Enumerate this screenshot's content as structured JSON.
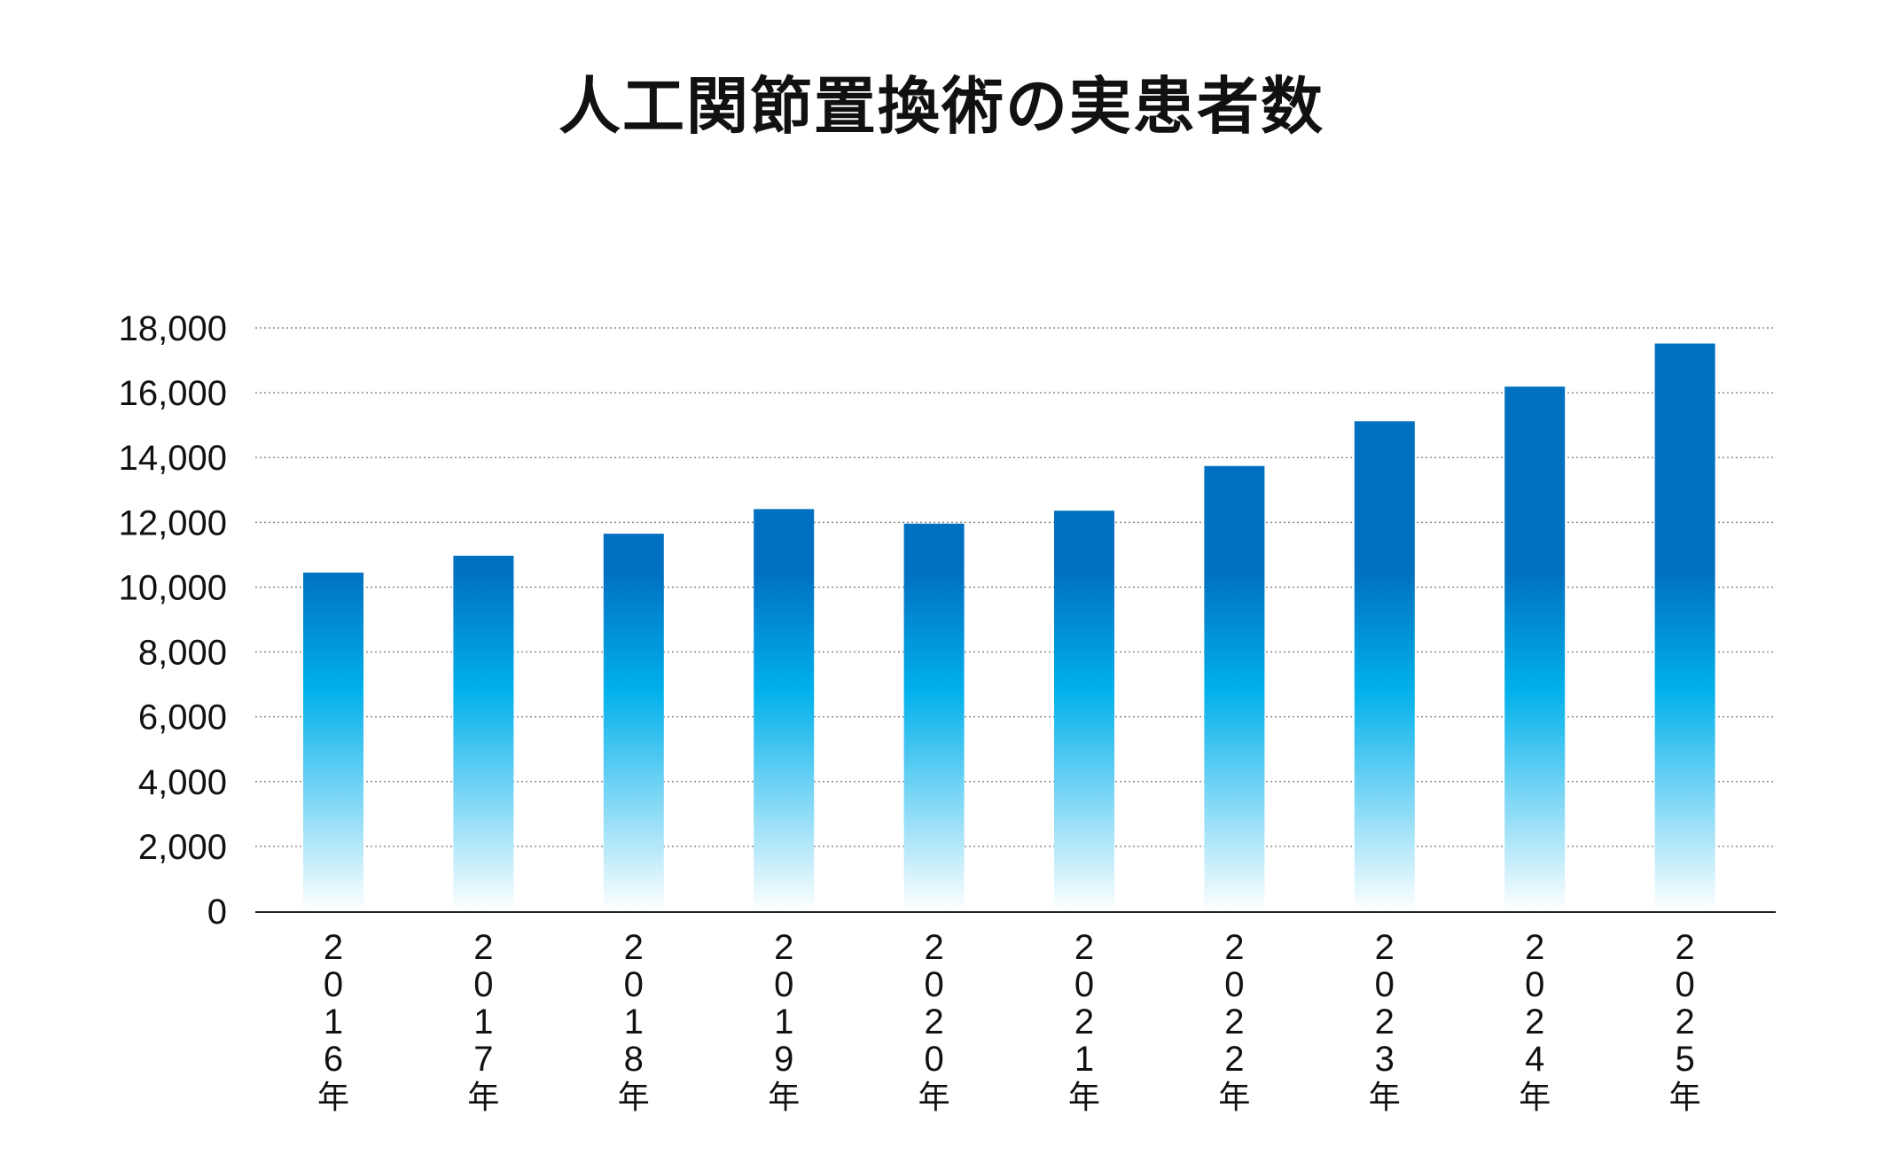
{
  "chart_data": {
    "type": "bar",
    "title": "人工関節置換術の実患者数",
    "categories": [
      "2016年",
      "2017年",
      "2018年",
      "2019年",
      "2020年",
      "2021年",
      "2022年",
      "2023年",
      "2024年",
      "2025年"
    ],
    "values": [
      10450,
      10970,
      11650,
      12410,
      11960,
      12360,
      13740,
      15120,
      16190,
      17520
    ],
    "ylim": [
      0,
      18000
    ],
    "yticks": [
      0,
      2000,
      4000,
      6000,
      8000,
      10000,
      12000,
      14000,
      16000,
      18000
    ],
    "ytick_labels": [
      "0",
      "2,000",
      "4,000",
      "6,000",
      "8,000",
      "10,000",
      "12,000",
      "14,000",
      "16,000",
      "18,000"
    ],
    "grid": true,
    "legend": "none",
    "bar_gradient": [
      "#0071c1",
      "#00b0eb",
      "#ffffff"
    ]
  }
}
